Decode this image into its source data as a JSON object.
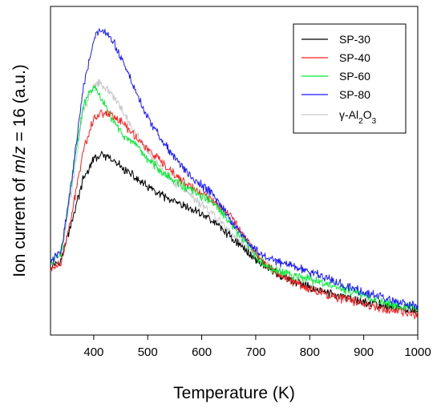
{
  "chart_data": {
    "type": "line",
    "xlabel": "Temperature (K)",
    "ylabel_parts": [
      "Ion current of ",
      "m",
      "/",
      "z",
      " = 16 (a.u.)"
    ],
    "xlim": [
      320,
      1000
    ],
    "ylim": [
      0,
      1
    ],
    "xticks": [
      400,
      500,
      600,
      700,
      800,
      900,
      1000
    ],
    "grid": false,
    "legend_position": "top-right",
    "series": [
      {
        "name": "SP-30",
        "color": "#000000",
        "x": [
          320,
          340,
          360,
          380,
          400,
          410,
          420,
          440,
          460,
          480,
          500,
          530,
          560,
          600,
          630,
          660,
          700,
          750,
          800,
          850,
          900,
          950,
          1000
        ],
        "y": [
          0.21,
          0.23,
          0.35,
          0.47,
          0.535,
          0.545,
          0.545,
          0.525,
          0.5,
          0.475,
          0.45,
          0.42,
          0.395,
          0.37,
          0.335,
          0.29,
          0.23,
          0.175,
          0.145,
          0.12,
          0.1,
          0.085,
          0.075
        ]
      },
      {
        "name": "SP-40",
        "color": "#ff2020",
        "x": [
          320,
          340,
          360,
          380,
          400,
          420,
          440,
          460,
          480,
          500,
          540,
          580,
          620,
          650,
          680,
          700,
          720,
          760,
          800,
          850,
          900,
          950,
          1000
        ],
        "y": [
          0.2,
          0.22,
          0.37,
          0.56,
          0.66,
          0.68,
          0.665,
          0.635,
          0.6,
          0.565,
          0.5,
          0.45,
          0.41,
          0.37,
          0.3,
          0.25,
          0.21,
          0.17,
          0.14,
          0.115,
          0.095,
          0.075,
          0.06
        ]
      },
      {
        "name": "SP-60",
        "color": "#00ee33",
        "x": [
          320,
          340,
          360,
          380,
          395,
          405,
          420,
          440,
          460,
          480,
          500,
          540,
          580,
          620,
          650,
          680,
          700,
          720,
          760,
          800,
          850,
          900,
          950,
          1000
        ],
        "y": [
          0.22,
          0.25,
          0.48,
          0.69,
          0.75,
          0.745,
          0.7,
          0.64,
          0.6,
          0.57,
          0.535,
          0.48,
          0.44,
          0.405,
          0.345,
          0.285,
          0.24,
          0.205,
          0.185,
          0.17,
          0.145,
          0.12,
          0.095,
          0.08
        ]
      },
      {
        "name": "SP-80",
        "color": "#1a1aff",
        "x": [
          320,
          340,
          360,
          380,
          400,
          410,
          420,
          430,
          440,
          460,
          480,
          500,
          540,
          580,
          620,
          650,
          680,
          710,
          740,
          780,
          820,
          860,
          900,
          950,
          1000
        ],
        "y": [
          0.22,
          0.26,
          0.48,
          0.75,
          0.9,
          0.925,
          0.92,
          0.905,
          0.88,
          0.81,
          0.735,
          0.66,
          0.56,
          0.48,
          0.43,
          0.36,
          0.29,
          0.245,
          0.225,
          0.205,
          0.18,
          0.155,
          0.13,
          0.105,
          0.085
        ]
      },
      {
        "name": "γ-Al2O3",
        "color": "#c8c8c8",
        "x": [
          320,
          340,
          360,
          380,
          400,
          410,
          420,
          440,
          460,
          480,
          500,
          540,
          580,
          620,
          660,
          700,
          740,
          780,
          820,
          860,
          900,
          950,
          1000
        ],
        "y": [
          0.22,
          0.25,
          0.45,
          0.68,
          0.76,
          0.77,
          0.76,
          0.72,
          0.66,
          0.61,
          0.56,
          0.48,
          0.42,
          0.37,
          0.3,
          0.24,
          0.19,
          0.16,
          0.135,
          0.115,
          0.1,
          0.085,
          0.075
        ]
      }
    ]
  }
}
